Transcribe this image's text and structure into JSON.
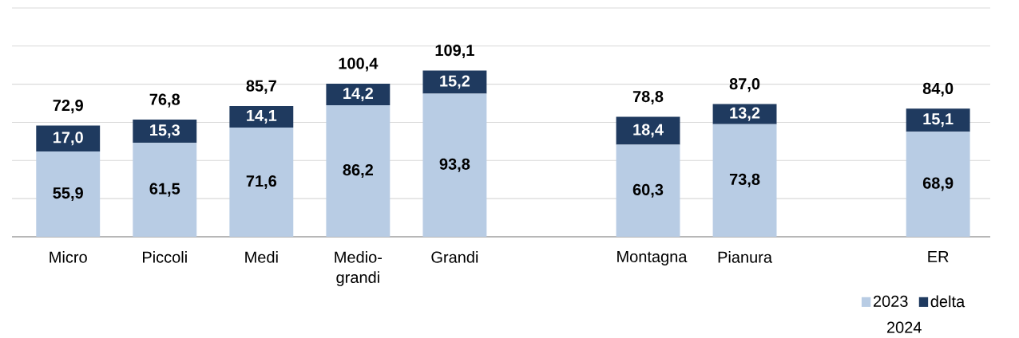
{
  "chart_data": {
    "type": "bar",
    "stacked": true,
    "categories": [
      "Micro",
      "Piccoli",
      "Medi",
      "Medio-grandi",
      "Grandi",
      null,
      "Montagna",
      "Pianura",
      null,
      "ER"
    ],
    "series": [
      {
        "name": "2023",
        "color": "#b8cce4",
        "values": [
          55.9,
          61.5,
          71.6,
          86.2,
          93.8,
          null,
          60.3,
          73.8,
          null,
          68.9
        ],
        "value_labels": [
          "55,9",
          "61,5",
          "71,6",
          "86,2",
          "93,8",
          null,
          "60,3",
          "73,8",
          null,
          "68,9"
        ]
      },
      {
        "name": "delta",
        "color": "#1f3a5f",
        "values": [
          17.0,
          15.3,
          14.1,
          14.2,
          15.2,
          null,
          18.4,
          13.2,
          null,
          15.1
        ],
        "value_labels": [
          "17,0",
          "15,3",
          "14,1",
          "14,2",
          "15,2",
          null,
          "18,4",
          "13,2",
          null,
          "15,1"
        ]
      }
    ],
    "totals": [
      "72,9",
      "76,8",
      "85,7",
      "100,4",
      "109,1",
      null,
      "78,8",
      "87,0",
      null,
      "84,0"
    ],
    "yticks": [
      {
        "value": 0,
        "label": null
      },
      {
        "value": 25,
        "label": null
      },
      {
        "value": 50,
        "label": null
      },
      {
        "value": 75,
        "label": null
      },
      {
        "value": 100,
        "label": null
      },
      {
        "value": 125,
        "label": null
      },
      {
        "value": 150,
        "label": null
      }
    ],
    "tick_labels": "x",
    "grid": "y",
    "legend": "bottom right",
    "annotations": [
      "2024"
    ]
  }
}
